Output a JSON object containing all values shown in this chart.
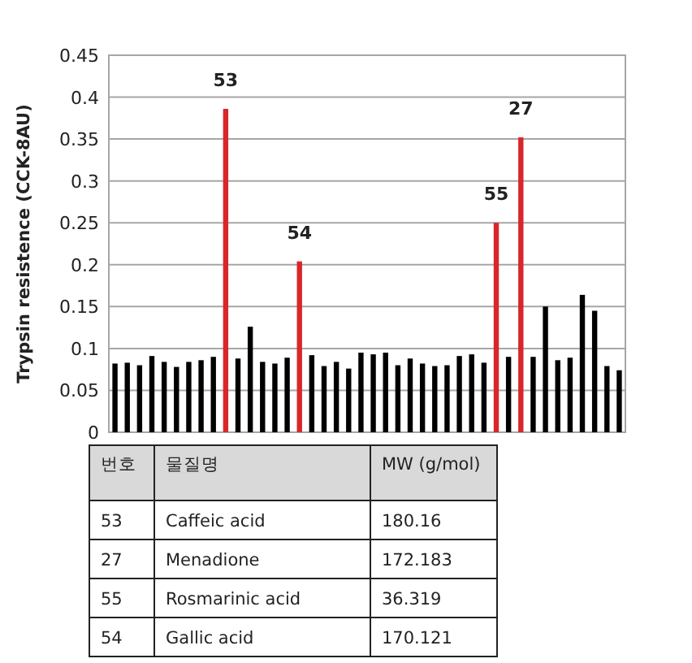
{
  "chart_data": {
    "type": "bar",
    "ylabel": "Trypsin resistence  (CCK-8AU)",
    "categories": [
      null,
      null,
      null,
      null,
      null,
      null,
      null,
      null,
      null,
      null,
      null,
      null,
      null,
      null,
      null,
      null,
      null,
      null,
      null,
      null,
      null,
      null,
      null,
      null,
      null,
      null,
      null,
      null,
      null,
      null,
      null,
      null,
      null,
      null,
      null,
      null,
      null,
      null,
      null,
      null,
      null,
      null
    ],
    "values": [
      0.082,
      0.083,
      0.08,
      0.091,
      0.084,
      0.078,
      0.084,
      0.086,
      0.09,
      0.386,
      0.088,
      0.126,
      0.084,
      0.082,
      0.089,
      0.204,
      0.092,
      0.079,
      0.084,
      0.076,
      0.095,
      0.093,
      0.095,
      0.08,
      0.088,
      0.082,
      0.079,
      0.08,
      0.091,
      0.093,
      0.083,
      0.25,
      0.09,
      0.352,
      0.09,
      0.15,
      0.086,
      0.089,
      0.164,
      0.145,
      0.079,
      0.074
    ],
    "colors": [
      "#000000",
      "#000000",
      "#000000",
      "#000000",
      "#000000",
      "#000000",
      "#000000",
      "#000000",
      "#000000",
      "#d9262b",
      "#000000",
      "#000000",
      "#000000",
      "#000000",
      "#000000",
      "#d9262b",
      "#000000",
      "#000000",
      "#000000",
      "#000000",
      "#000000",
      "#000000",
      "#000000",
      "#000000",
      "#000000",
      "#000000",
      "#000000",
      "#000000",
      "#000000",
      "#000000",
      "#000000",
      "#d9262b",
      "#000000",
      "#d9262b",
      "#000000",
      "#000000",
      "#000000",
      "#000000",
      "#000000",
      "#000000",
      "#000000",
      "#000000"
    ],
    "ylim": [
      0,
      0.45
    ],
    "yticks": [
      0,
      0.05,
      0.1,
      0.15,
      0.2,
      0.25,
      0.3,
      0.35,
      0.4,
      0.45
    ],
    "grid": "y",
    "tick_labels": "y",
    "annotations": [
      {
        "text": "53",
        "y": 0.386
      },
      {
        "text": "54",
        "y": 0.204
      },
      {
        "text": "55",
        "y": 0.25
      },
      {
        "text": "27",
        "y": 0.352
      },
      "번호",
      "물질명",
      "MW (g/mol)",
      "53",
      "Caffeic acid",
      "180.16",
      "27",
      "Menadione",
      "172.183",
      "55",
      "Rosmarinic acid",
      "36.319",
      "54",
      "Gallic acid",
      "170.121"
    ]
  }
}
